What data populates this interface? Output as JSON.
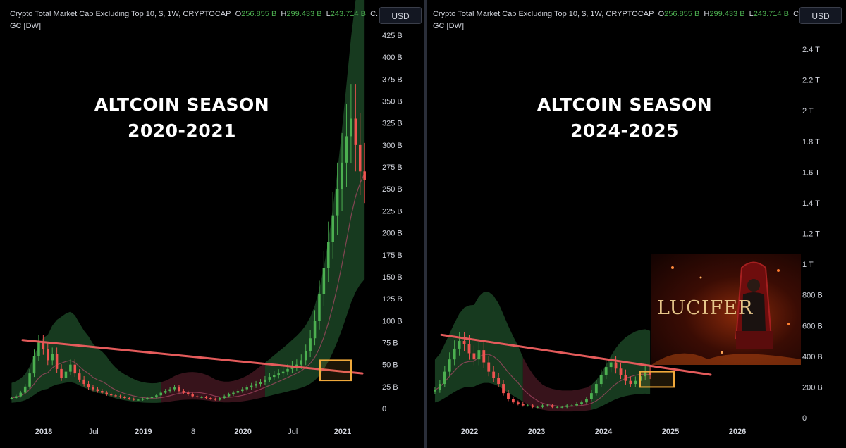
{
  "legend": {
    "title": "Crypto Total Market Cap Excluding Top 10, $, 1W, CRYPTOCAP",
    "open_label": "O",
    "open_value": "256.855 B",
    "high_label": "H",
    "high_value": "299.433 B",
    "low_label": "L",
    "low_value": "243.714 B",
    "close_label": "C...",
    "indicator": "GC [DW]"
  },
  "currency_button": "USD",
  "colors": {
    "up": "#4caf50",
    "down": "#ef5350",
    "trendline": "#e45b5b",
    "highlight_box": "#f0a93b",
    "band_green": "#1f4d2a",
    "band_red": "#4a1a24"
  },
  "chart_data": [
    {
      "type": "candlestick",
      "annotation": [
        "ALTCOIN SEASON",
        "2020-2021"
      ],
      "y_ticks": [
        "425 B",
        "400 B",
        "375 B",
        "350 B",
        "325 B",
        "300 B",
        "275 B",
        "250 B",
        "225 B",
        "200 B",
        "175 B",
        "150 B",
        "125 B",
        "100 B",
        "75 B",
        "50 B",
        "25 B",
        "0"
      ],
      "y_range": [
        0,
        425
      ],
      "x_ticks": [
        {
          "label": "2018",
          "year": true
        },
        {
          "label": "Jul",
          "year": false
        },
        {
          "label": "2019",
          "year": true
        },
        {
          "label": "8",
          "year": false
        },
        {
          "label": "2020",
          "year": true
        },
        {
          "label": "Jul",
          "year": false
        },
        {
          "label": "2021",
          "year": true
        }
      ],
      "weekly_series": [
        12,
        14,
        18,
        25,
        40,
        60,
        75,
        68,
        55,
        62,
        45,
        35,
        42,
        50,
        40,
        33,
        28,
        24,
        22,
        20,
        18,
        16,
        15,
        14,
        13,
        12,
        11,
        10,
        10,
        11,
        12,
        13,
        15,
        18,
        20,
        22,
        24,
        20,
        18,
        16,
        14,
        13,
        13,
        12,
        11,
        10,
        12,
        14,
        16,
        18,
        20,
        22,
        24,
        26,
        28,
        30,
        33,
        36,
        38,
        40,
        42,
        45,
        48,
        50,
        55,
        65,
        80,
        100,
        130,
        160,
        190,
        220,
        250,
        280,
        310,
        330,
        300,
        270,
        260
      ],
      "trendline_values": [
        78,
        40
      ],
      "highlight_range": [
        32,
        55
      ]
    },
    {
      "type": "candlestick",
      "annotation": [
        "ALTCOIN SEASON",
        "2024-2025"
      ],
      "y_ticks": [
        "2.4 T",
        "2.2 T",
        "2 T",
        "1.8 T",
        "1.6 T",
        "1.4 T",
        "1.2 T",
        "1 T",
        "800 B",
        "600 B",
        "400 B",
        "200 B",
        "0"
      ],
      "y_range": [
        0,
        2.4
      ],
      "x_ticks": [
        {
          "label": "2022",
          "year": true
        },
        {
          "label": "2023",
          "year": true
        },
        {
          "label": "2024",
          "year": true
        },
        {
          "label": "2025",
          "year": true
        },
        {
          "label": "2026",
          "year": true
        }
      ],
      "weekly_series": [
        0.18,
        0.22,
        0.3,
        0.38,
        0.45,
        0.5,
        0.48,
        0.42,
        0.38,
        0.44,
        0.36,
        0.3,
        0.26,
        0.22,
        0.16,
        0.12,
        0.1,
        0.09,
        0.08,
        0.08,
        0.07,
        0.07,
        0.08,
        0.08,
        0.07,
        0.07,
        0.07,
        0.08,
        0.08,
        0.09,
        0.1,
        0.12,
        0.16,
        0.22,
        0.28,
        0.33,
        0.36,
        0.32,
        0.28,
        0.24,
        0.22,
        0.24,
        0.27,
        0.3,
        0.28
      ],
      "trendline_values": [
        0.54,
        0.28
      ],
      "highlight_range": [
        0.2,
        0.3
      ]
    }
  ],
  "poster": {
    "title": "LUCIFER"
  }
}
